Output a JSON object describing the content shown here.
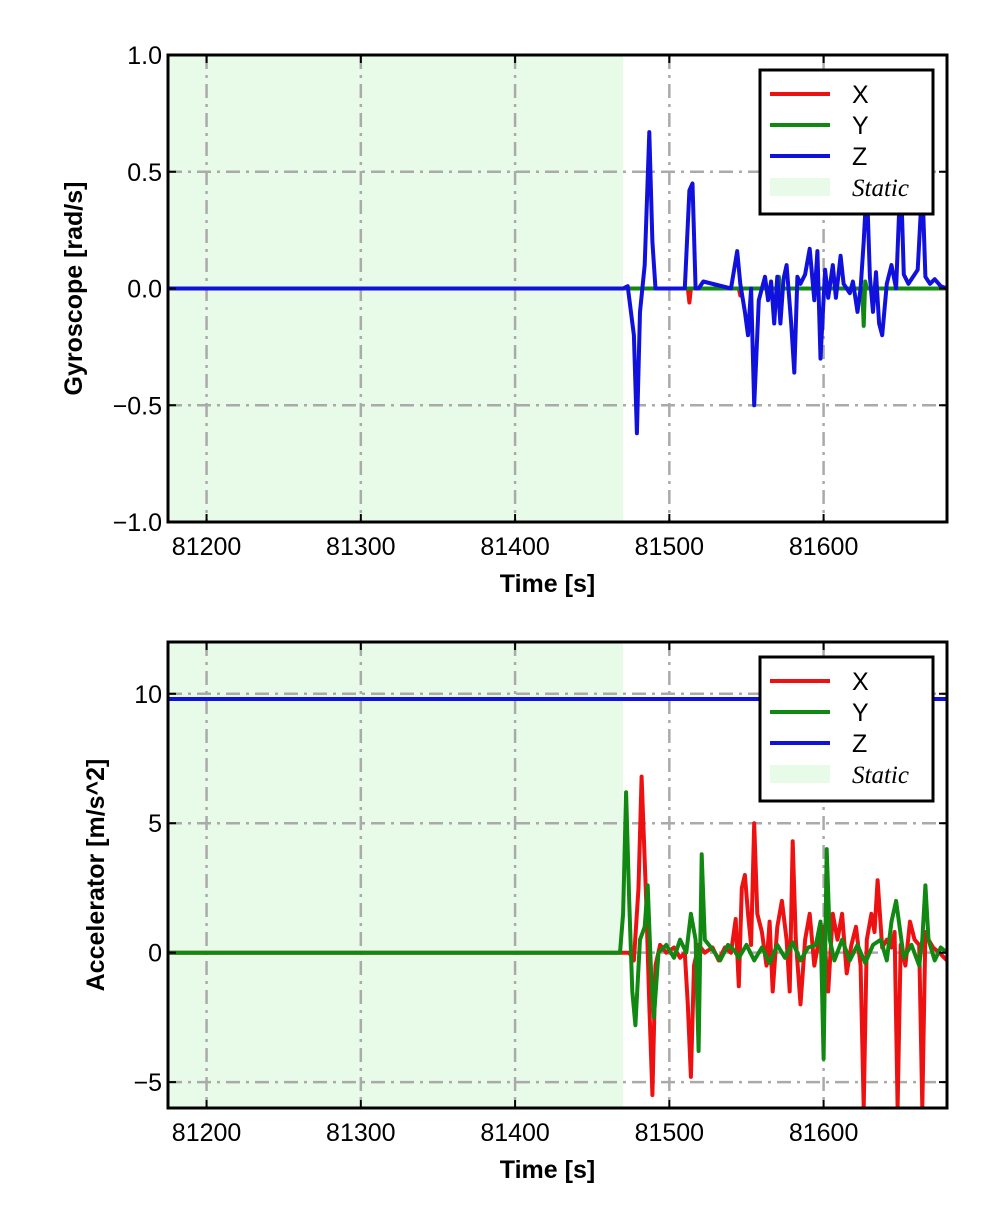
{
  "chart_data": [
    {
      "type": "line",
      "title": "",
      "xlabel": "Time [s]",
      "ylabel": "Gyroscope [rad/s]",
      "xlim": [
        81175,
        81680
      ],
      "ylim": [
        -1.0,
        1.0
      ],
      "xticks": [
        81200,
        81300,
        81400,
        81500,
        81600
      ],
      "xtick_labels": [
        "81200",
        "81300",
        "81400",
        "81500",
        "81600"
      ],
      "yticks": [
        -1.0,
        -0.5,
        0.0,
        0.5,
        1.0
      ],
      "ytick_labels": [
        "−1.0",
        "−0.5",
        "0.0",
        "0.5",
        "1.0"
      ],
      "grid": true,
      "legend_position": "top-right",
      "static_region": {
        "label": "Static",
        "x": [
          81175,
          81470
        ],
        "color": "#e8fbe8"
      },
      "series": [
        {
          "name": "X",
          "color": "#ee1111",
          "x": [
            81175,
            81470,
            81512,
            81513,
            81514,
            81515,
            81545,
            81546,
            81547,
            81680
          ],
          "y": [
            0,
            0,
            0,
            -0.06,
            0,
            0,
            0,
            -0.03,
            0,
            0
          ]
        },
        {
          "name": "Y",
          "color": "#118811",
          "x": [
            81175,
            81570,
            81571,
            81572,
            81573,
            81625,
            81626,
            81627,
            81628,
            81680
          ],
          "y": [
            0,
            0,
            0.05,
            -0.1,
            0,
            0,
            -0.16,
            0.03,
            0,
            0
          ]
        },
        {
          "name": "Z",
          "color": "#1111dd",
          "x": [
            81175,
            81470,
            81473,
            81477,
            81479,
            81481,
            81484,
            81487,
            81489,
            81491,
            81510,
            81513,
            81515,
            81517,
            81519,
            81522,
            81540,
            81544,
            81546,
            81549,
            81551,
            81553,
            81555,
            81558,
            81562,
            81564,
            81566,
            81568,
            81570,
            81572,
            81574,
            81576,
            81579,
            81581,
            81583,
            81585,
            81588,
            81591,
            81594,
            81596,
            81598,
            81601,
            81603,
            81606,
            81608,
            81611,
            81613,
            81617,
            81619,
            81622,
            81624,
            81626,
            81628,
            81630,
            81632,
            81634,
            81636,
            81638,
            81641,
            81644,
            81647,
            81650,
            81652,
            81655,
            81658,
            81661,
            81664,
            81666,
            81669,
            81672,
            81676,
            81680
          ],
          "y": [
            0,
            0,
            0.01,
            -0.2,
            -0.62,
            -0.1,
            0.1,
            0.67,
            0.2,
            0,
            0,
            0.42,
            0.45,
            0,
            0,
            0.03,
            0,
            0.16,
            0.02,
            -0.1,
            -0.2,
            0,
            -0.5,
            -0.05,
            0.05,
            -0.05,
            0.03,
            -0.15,
            0.05,
            -0.15,
            0.04,
            0.1,
            -0.15,
            -0.36,
            0.05,
            0.02,
            0.06,
            0.17,
            -0.05,
            0.16,
            -0.3,
            0.08,
            -0.04,
            0.1,
            -0.04,
            0.14,
            0.02,
            -0.02,
            0.03,
            -0.1,
            0,
            0.2,
            0.45,
            0.05,
            -0.1,
            0.07,
            -0.15,
            -0.2,
            0.02,
            0.1,
            0,
            0.5,
            0.06,
            0.02,
            0.05,
            0.08,
            0.45,
            0.05,
            0.02,
            0.04,
            0.01,
            0
          ]
        }
      ]
    },
    {
      "type": "line",
      "title": "",
      "xlabel": "Time [s]",
      "ylabel": "Accelerator [m/s^2]",
      "xlim": [
        81175,
        81680
      ],
      "ylim": [
        -6,
        12
      ],
      "xticks": [
        81200,
        81300,
        81400,
        81500,
        81600
      ],
      "xtick_labels": [
        "81200",
        "81300",
        "81400",
        "81500",
        "81600"
      ],
      "yticks": [
        -5,
        0,
        5,
        10
      ],
      "ytick_labels": [
        "−5",
        "0",
        "5",
        "10"
      ],
      "grid": true,
      "legend_position": "top-right",
      "static_region": {
        "label": "Static",
        "x": [
          81175,
          81470
        ],
        "color": "#e8fbe8"
      },
      "series": [
        {
          "name": "Z",
          "color": "#1111dd",
          "x": [
            81175,
            81470,
            81680
          ],
          "y": [
            9.8,
            9.8,
            9.8
          ]
        },
        {
          "name": "X",
          "color": "#ee1111",
          "x": [
            81175,
            81470,
            81474,
            81477,
            81480,
            81482,
            81485,
            81487,
            81489,
            81491,
            81494,
            81498,
            81503,
            81507,
            81510,
            81512,
            81514,
            81516,
            81519,
            81523,
            81528,
            81532,
            81536,
            81540,
            81543,
            81545,
            81547,
            81549,
            81551,
            81553,
            81555,
            81557,
            81560,
            81563,
            81565,
            81567,
            81570,
            81573,
            81576,
            81578,
            81580,
            81582,
            81585,
            81588,
            81591,
            81594,
            81597,
            81600,
            81603,
            81606,
            81609,
            81612,
            81615,
            81618,
            81621,
            81624,
            81626,
            81628,
            81631,
            81633,
            81635,
            81638,
            81641,
            81644,
            81646,
            81648,
            81650,
            81653,
            81656,
            81659,
            81662,
            81664,
            81666,
            81668,
            81671,
            81675,
            81680
          ],
          "y": [
            0,
            0,
            0,
            -0.3,
            2.5,
            6.8,
            2,
            -2,
            -5.5,
            -0.5,
            0.3,
            0,
            0.2,
            -0.2,
            0,
            -2,
            -4.8,
            -0.5,
            0.3,
            0,
            0.2,
            -0.3,
            0.2,
            0,
            1.3,
            -1.3,
            2.5,
            3,
            1.5,
            0.3,
            5,
            1.5,
            0.8,
            -0.5,
            1.2,
            -1.5,
            1,
            2,
            0.5,
            -1.5,
            4.3,
            0.5,
            -2,
            0.5,
            1.5,
            -0.5,
            0.5,
            1,
            -1.5,
            1.5,
            0.5,
            1.5,
            -0.8,
            0.3,
            1,
            -0.5,
            -6,
            0.5,
            1.5,
            0.8,
            2.8,
            0.2,
            0.5,
            0.2,
            0.8,
            -6,
            0.3,
            -0.5,
            1.2,
            0.5,
            0.3,
            -6,
            0.8,
            0.5,
            0.2,
            0,
            -0.3
          ]
        },
        {
          "name": "Y",
          "color": "#118811",
          "x": [
            81175,
            81468,
            81470,
            81472,
            81474,
            81476,
            81478,
            81481,
            81484,
            81486,
            81488,
            81490,
            81493,
            81498,
            81503,
            81507,
            81511,
            81514,
            81517,
            81519,
            81521,
            81523,
            81527,
            81533,
            81538,
            81542,
            81545,
            81550,
            81555,
            81560,
            81565,
            81570,
            81575,
            81580,
            81585,
            81590,
            81595,
            81598,
            81600,
            81602,
            81604,
            81607,
            81612,
            81617,
            81622,
            81627,
            81632,
            81637,
            81641,
            81644,
            81647,
            81652,
            81657,
            81662,
            81664,
            81666,
            81668,
            81672,
            81676,
            81680
          ],
          "y": [
            0,
            0,
            1.5,
            6.2,
            2,
            -1.5,
            -2.8,
            0.5,
            1,
            2.6,
            -0.5,
            -2.5,
            0,
            0.3,
            -0.2,
            0.5,
            0,
            1.5,
            0.5,
            -3.8,
            3.8,
            0.5,
            0.2,
            -0.3,
            0.3,
            0.1,
            -0.2,
            0.3,
            -0.3,
            0.2,
            -0.4,
            0.3,
            -0.2,
            0.4,
            -0.3,
            0.2,
            0.3,
            1.2,
            -4.1,
            4,
            0.5,
            -0.3,
            0.5,
            -0.3,
            0.3,
            -0.4,
            0.3,
            0.5,
            -0.3,
            1.2,
            2,
            -0.2,
            0.3,
            -0.5,
            0.5,
            2.6,
            0.5,
            -0.3,
            0.2,
            0
          ]
        }
      ]
    }
  ]
}
